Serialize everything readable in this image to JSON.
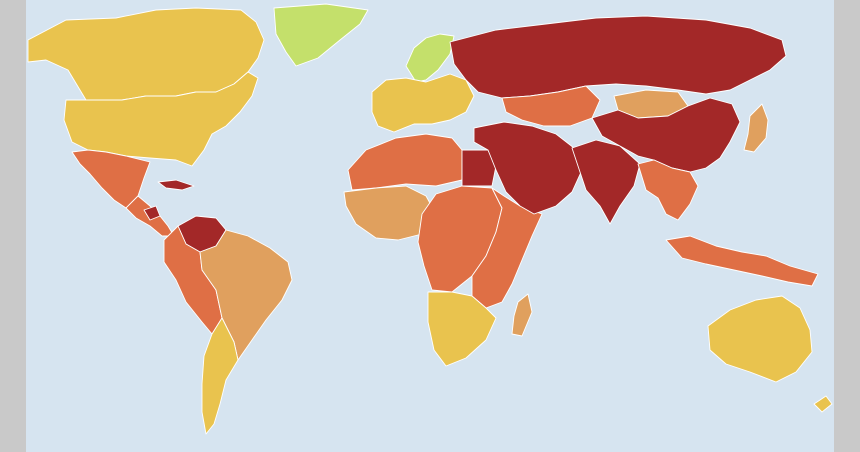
{
  "map": {
    "type": "choropleth world map",
    "colors": {
      "ocean": "#d6e4f0",
      "frame": "#c9c9c9",
      "border": "#ffffff",
      "good": "#c4e06b",
      "satisfactory": "#e9c34e",
      "problematic": "#e0a05e",
      "difficult": "#df6f45",
      "very_serious": "#a32828"
    },
    "regions": {
      "greenland": "good",
      "scandinavia": "good",
      "canada": "satisfactory",
      "usa": "satisfactory",
      "western_europe": "satisfactory",
      "mexico": "difficult",
      "central_america": "difficult",
      "cuba": "very_serious",
      "nicaragua": "very_serious",
      "venezuela": "very_serious",
      "brazil": "problematic",
      "andes": "difficult",
      "argentina_chile": "satisfactory",
      "north_africa": "difficult",
      "egypt": "very_serious",
      "west_africa": "problematic",
      "central_africa": "difficult",
      "east_africa": "difficult",
      "southern_africa": "satisfactory",
      "madagascar": "problematic",
      "russia": "very_serious",
      "middle_east": "very_serious",
      "south_asia": "very_serious",
      "china": "very_serious",
      "kazakhstan": "difficult",
      "mongolia": "problematic",
      "japan": "problematic",
      "southeast_asia": "difficult",
      "indonesia": "difficult",
      "australia": "satisfactory",
      "new_zealand": "satisfactory"
    }
  }
}
